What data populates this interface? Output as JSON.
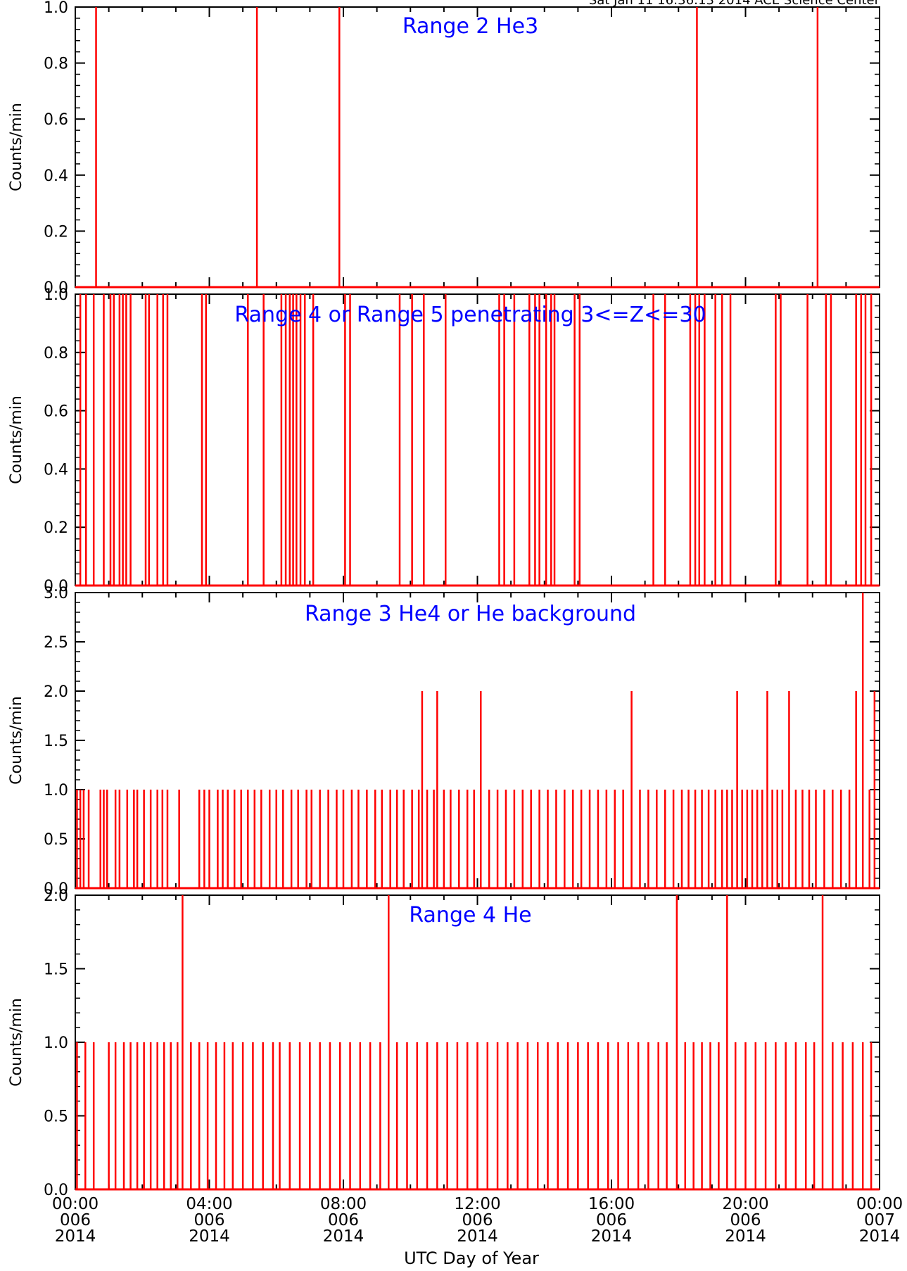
{
  "header": {
    "timestamp": "Sat Jan 11 16:36:13 2014 ACE Science Center"
  },
  "x_axis": {
    "label": "UTC Day of Year",
    "range_hours": [
      0,
      24
    ],
    "ticks": [
      {
        "hour": 0,
        "time": "00:00",
        "doy": "006",
        "year": "2014"
      },
      {
        "hour": 4,
        "time": "04:00",
        "doy": "006",
        "year": "2014"
      },
      {
        "hour": 8,
        "time": "08:00",
        "doy": "006",
        "year": "2014"
      },
      {
        "hour": 12,
        "time": "12:00",
        "doy": "006",
        "year": "2014"
      },
      {
        "hour": 16,
        "time": "16:00",
        "doy": "006",
        "year": "2014"
      },
      {
        "hour": 20,
        "time": "20:00",
        "doy": "006",
        "year": "2014"
      },
      {
        "hour": 24,
        "time": "00:00",
        "doy": "007",
        "year": "2014"
      }
    ]
  },
  "colors": {
    "data": "#ff0000",
    "title": "#0000ff",
    "axes": "#000000"
  },
  "chart_data": [
    {
      "type": "line",
      "title": "Range 2 He3",
      "ylabel": "Counts/min",
      "ylim": [
        0,
        1.0
      ],
      "yticks": [
        "0.0",
        "0.2",
        "0.4",
        "0.6",
        "0.8",
        "1.0"
      ],
      "ytick_values": [
        0,
        0.2,
        0.4,
        0.6,
        0.8,
        1.0
      ],
      "spikes": [
        {
          "t": 0.62,
          "v": 1
        },
        {
          "t": 5.42,
          "v": 1
        },
        {
          "t": 7.88,
          "v": 1
        },
        {
          "t": 18.55,
          "v": 1
        },
        {
          "t": 22.15,
          "v": 1
        }
      ]
    },
    {
      "type": "line",
      "title": "Range 4 or Range 5 penetrating 3<=Z<=30",
      "ylabel": "Counts/min",
      "ylim": [
        0,
        1.0
      ],
      "yticks": [
        "0.0",
        "0.2",
        "0.4",
        "0.6",
        "0.8",
        "1.0"
      ],
      "ytick_values": [
        0,
        0.2,
        0.4,
        0.6,
        0.8,
        1.0
      ],
      "spikes": [
        {
          "t": 0.15,
          "v": 1
        },
        {
          "t": 0.32,
          "v": 1
        },
        {
          "t": 0.55,
          "v": 1
        },
        {
          "t": 0.85,
          "v": 1
        },
        {
          "t": 1.05,
          "v": 1
        },
        {
          "t": 1.15,
          "v": 1
        },
        {
          "t": 1.32,
          "v": 1
        },
        {
          "t": 1.42,
          "v": 1
        },
        {
          "t": 1.52,
          "v": 1
        },
        {
          "t": 1.65,
          "v": 1
        },
        {
          "t": 2.1,
          "v": 1
        },
        {
          "t": 2.2,
          "v": 1
        },
        {
          "t": 2.45,
          "v": 1
        },
        {
          "t": 2.62,
          "v": 1
        },
        {
          "t": 2.75,
          "v": 1
        },
        {
          "t": 3.78,
          "v": 1
        },
        {
          "t": 3.9,
          "v": 1
        },
        {
          "t": 5.15,
          "v": 1
        },
        {
          "t": 5.62,
          "v": 1
        },
        {
          "t": 6.15,
          "v": 1
        },
        {
          "t": 6.28,
          "v": 1
        },
        {
          "t": 6.4,
          "v": 1
        },
        {
          "t": 6.5,
          "v": 1
        },
        {
          "t": 6.6,
          "v": 1
        },
        {
          "t": 6.72,
          "v": 1
        },
        {
          "t": 6.85,
          "v": 1
        },
        {
          "t": 7.1,
          "v": 1
        },
        {
          "t": 8.05,
          "v": 1
        },
        {
          "t": 8.2,
          "v": 1
        },
        {
          "t": 9.68,
          "v": 1
        },
        {
          "t": 10.05,
          "v": 1
        },
        {
          "t": 10.4,
          "v": 1
        },
        {
          "t": 11.05,
          "v": 1
        },
        {
          "t": 12.65,
          "v": 1
        },
        {
          "t": 12.8,
          "v": 1
        },
        {
          "t": 13.1,
          "v": 1
        },
        {
          "t": 13.55,
          "v": 1
        },
        {
          "t": 13.72,
          "v": 1
        },
        {
          "t": 13.85,
          "v": 1
        },
        {
          "t": 14.05,
          "v": 1
        },
        {
          "t": 14.2,
          "v": 1
        },
        {
          "t": 14.3,
          "v": 1
        },
        {
          "t": 14.9,
          "v": 1
        },
        {
          "t": 15.05,
          "v": 1
        },
        {
          "t": 17.25,
          "v": 1
        },
        {
          "t": 17.6,
          "v": 1
        },
        {
          "t": 18.35,
          "v": 1
        },
        {
          "t": 18.5,
          "v": 1
        },
        {
          "t": 18.62,
          "v": 1
        },
        {
          "t": 18.78,
          "v": 1
        },
        {
          "t": 19.1,
          "v": 1
        },
        {
          "t": 19.3,
          "v": 1
        },
        {
          "t": 19.55,
          "v": 1
        },
        {
          "t": 20.9,
          "v": 1
        },
        {
          "t": 21.05,
          "v": 1
        },
        {
          "t": 21.85,
          "v": 1
        },
        {
          "t": 22.4,
          "v": 1
        },
        {
          "t": 22.55,
          "v": 1
        },
        {
          "t": 23.3,
          "v": 1
        },
        {
          "t": 23.45,
          "v": 1
        },
        {
          "t": 23.58,
          "v": 1
        },
        {
          "t": 23.75,
          "v": 1
        }
      ]
    },
    {
      "type": "line",
      "title": "Range 3 He4 or He background",
      "ylabel": "Counts/min",
      "ylim": [
        0,
        3.0
      ],
      "yticks": [
        "0.0",
        "0.5",
        "1.0",
        "1.5",
        "2.0",
        "2.5",
        "3.0"
      ],
      "ytick_values": [
        0,
        0.5,
        1.0,
        1.5,
        2.0,
        2.5,
        3.0
      ],
      "spikes": [
        {
          "t": 0.05,
          "v": 1
        },
        {
          "t": 0.15,
          "v": 1
        },
        {
          "t": 0.25,
          "v": 1
        },
        {
          "t": 0.4,
          "v": 1
        },
        {
          "t": 0.75,
          "v": 1
        },
        {
          "t": 0.85,
          "v": 1
        },
        {
          "t": 0.95,
          "v": 1
        },
        {
          "t": 1.2,
          "v": 1
        },
        {
          "t": 1.32,
          "v": 1
        },
        {
          "t": 1.55,
          "v": 1
        },
        {
          "t": 1.75,
          "v": 1
        },
        {
          "t": 1.85,
          "v": 1
        },
        {
          "t": 2.05,
          "v": 1
        },
        {
          "t": 2.25,
          "v": 1
        },
        {
          "t": 2.45,
          "v": 1
        },
        {
          "t": 2.6,
          "v": 1
        },
        {
          "t": 2.75,
          "v": 1
        },
        {
          "t": 3.1,
          "v": 1
        },
        {
          "t": 3.7,
          "v": 1
        },
        {
          "t": 3.85,
          "v": 1
        },
        {
          "t": 4.0,
          "v": 1
        },
        {
          "t": 4.25,
          "v": 1
        },
        {
          "t": 4.4,
          "v": 1
        },
        {
          "t": 4.55,
          "v": 1
        },
        {
          "t": 4.75,
          "v": 1
        },
        {
          "t": 4.95,
          "v": 1
        },
        {
          "t": 5.15,
          "v": 1
        },
        {
          "t": 5.35,
          "v": 1
        },
        {
          "t": 5.55,
          "v": 1
        },
        {
          "t": 5.8,
          "v": 1
        },
        {
          "t": 6.0,
          "v": 1
        },
        {
          "t": 6.2,
          "v": 1
        },
        {
          "t": 6.45,
          "v": 1
        },
        {
          "t": 6.65,
          "v": 1
        },
        {
          "t": 6.9,
          "v": 1
        },
        {
          "t": 7.05,
          "v": 1
        },
        {
          "t": 7.3,
          "v": 1
        },
        {
          "t": 7.55,
          "v": 1
        },
        {
          "t": 7.8,
          "v": 1
        },
        {
          "t": 8.0,
          "v": 1
        },
        {
          "t": 8.25,
          "v": 1
        },
        {
          "t": 8.45,
          "v": 1
        },
        {
          "t": 8.7,
          "v": 1
        },
        {
          "t": 8.95,
          "v": 1
        },
        {
          "t": 9.15,
          "v": 1
        },
        {
          "t": 9.4,
          "v": 1
        },
        {
          "t": 9.6,
          "v": 1
        },
        {
          "t": 9.8,
          "v": 1
        },
        {
          "t": 10.05,
          "v": 1
        },
        {
          "t": 10.25,
          "v": 1
        },
        {
          "t": 10.35,
          "v": 2
        },
        {
          "t": 10.5,
          "v": 1
        },
        {
          "t": 10.7,
          "v": 1
        },
        {
          "t": 10.8,
          "v": 2
        },
        {
          "t": 11.0,
          "v": 1
        },
        {
          "t": 11.2,
          "v": 1
        },
        {
          "t": 11.45,
          "v": 1
        },
        {
          "t": 11.7,
          "v": 1
        },
        {
          "t": 11.9,
          "v": 1
        },
        {
          "t": 12.1,
          "v": 2
        },
        {
          "t": 12.35,
          "v": 1
        },
        {
          "t": 12.6,
          "v": 1
        },
        {
          "t": 12.85,
          "v": 1
        },
        {
          "t": 13.1,
          "v": 1
        },
        {
          "t": 13.35,
          "v": 1
        },
        {
          "t": 13.6,
          "v": 1
        },
        {
          "t": 13.85,
          "v": 1
        },
        {
          "t": 14.1,
          "v": 1
        },
        {
          "t": 14.35,
          "v": 1
        },
        {
          "t": 14.6,
          "v": 1
        },
        {
          "t": 14.85,
          "v": 1
        },
        {
          "t": 15.1,
          "v": 1
        },
        {
          "t": 15.35,
          "v": 1
        },
        {
          "t": 15.6,
          "v": 1
        },
        {
          "t": 15.85,
          "v": 1
        },
        {
          "t": 16.1,
          "v": 1
        },
        {
          "t": 16.35,
          "v": 1
        },
        {
          "t": 16.6,
          "v": 2
        },
        {
          "t": 16.85,
          "v": 1
        },
        {
          "t": 17.1,
          "v": 1
        },
        {
          "t": 17.35,
          "v": 1
        },
        {
          "t": 17.6,
          "v": 1
        },
        {
          "t": 17.85,
          "v": 1
        },
        {
          "t": 18.1,
          "v": 1
        },
        {
          "t": 18.3,
          "v": 1
        },
        {
          "t": 18.5,
          "v": 1
        },
        {
          "t": 18.7,
          "v": 1
        },
        {
          "t": 18.9,
          "v": 1
        },
        {
          "t": 19.1,
          "v": 1
        },
        {
          "t": 19.3,
          "v": 1
        },
        {
          "t": 19.45,
          "v": 1
        },
        {
          "t": 19.6,
          "v": 1
        },
        {
          "t": 19.75,
          "v": 2
        },
        {
          "t": 19.9,
          "v": 1
        },
        {
          "t": 20.05,
          "v": 1
        },
        {
          "t": 20.2,
          "v": 1
        },
        {
          "t": 20.35,
          "v": 1
        },
        {
          "t": 20.5,
          "v": 1
        },
        {
          "t": 20.65,
          "v": 2
        },
        {
          "t": 20.8,
          "v": 1
        },
        {
          "t": 20.95,
          "v": 1
        },
        {
          "t": 21.1,
          "v": 1
        },
        {
          "t": 21.3,
          "v": 2
        },
        {
          "t": 21.5,
          "v": 1
        },
        {
          "t": 21.7,
          "v": 1
        },
        {
          "t": 21.9,
          "v": 1
        },
        {
          "t": 22.1,
          "v": 1
        },
        {
          "t": 22.35,
          "v": 1
        },
        {
          "t": 22.6,
          "v": 1
        },
        {
          "t": 22.85,
          "v": 1
        },
        {
          "t": 23.1,
          "v": 1
        },
        {
          "t": 23.3,
          "v": 2
        },
        {
          "t": 23.5,
          "v": 3
        },
        {
          "t": 23.7,
          "v": 1
        },
        {
          "t": 23.85,
          "v": 2
        }
      ]
    },
    {
      "type": "line",
      "title": "Range 4 He",
      "ylabel": "Counts/min",
      "ylim": [
        0,
        2.0
      ],
      "yticks": [
        "0.0",
        "0.5",
        "1.0",
        "1.5",
        "2.0"
      ],
      "ytick_values": [
        0,
        0.5,
        1.0,
        1.5,
        2.0
      ],
      "spikes": [
        {
          "t": 0.05,
          "v": 1
        },
        {
          "t": 0.3,
          "v": 1
        },
        {
          "t": 0.55,
          "v": 1
        },
        {
          "t": 1.0,
          "v": 1
        },
        {
          "t": 1.2,
          "v": 1
        },
        {
          "t": 1.45,
          "v": 1
        },
        {
          "t": 1.65,
          "v": 1
        },
        {
          "t": 1.85,
          "v": 1
        },
        {
          "t": 2.05,
          "v": 1
        },
        {
          "t": 2.25,
          "v": 1
        },
        {
          "t": 2.45,
          "v": 1
        },
        {
          "t": 2.65,
          "v": 1
        },
        {
          "t": 2.85,
          "v": 1
        },
        {
          "t": 3.05,
          "v": 1
        },
        {
          "t": 3.2,
          "v": 2
        },
        {
          "t": 3.45,
          "v": 1
        },
        {
          "t": 3.7,
          "v": 1
        },
        {
          "t": 3.95,
          "v": 1
        },
        {
          "t": 4.2,
          "v": 1
        },
        {
          "t": 4.45,
          "v": 1
        },
        {
          "t": 4.7,
          "v": 1
        },
        {
          "t": 5.0,
          "v": 1
        },
        {
          "t": 5.3,
          "v": 1
        },
        {
          "t": 5.6,
          "v": 1
        },
        {
          "t": 5.9,
          "v": 1
        },
        {
          "t": 6.1,
          "v": 1
        },
        {
          "t": 6.4,
          "v": 1
        },
        {
          "t": 6.7,
          "v": 1
        },
        {
          "t": 7.0,
          "v": 1
        },
        {
          "t": 7.3,
          "v": 1
        },
        {
          "t": 7.6,
          "v": 1
        },
        {
          "t": 7.9,
          "v": 1
        },
        {
          "t": 8.2,
          "v": 1
        },
        {
          "t": 8.5,
          "v": 1
        },
        {
          "t": 8.8,
          "v": 1
        },
        {
          "t": 9.1,
          "v": 1
        },
        {
          "t": 9.35,
          "v": 2
        },
        {
          "t": 9.6,
          "v": 1
        },
        {
          "t": 9.9,
          "v": 1
        },
        {
          "t": 10.2,
          "v": 1
        },
        {
          "t": 10.5,
          "v": 1
        },
        {
          "t": 10.8,
          "v": 1
        },
        {
          "t": 11.1,
          "v": 1
        },
        {
          "t": 11.4,
          "v": 1
        },
        {
          "t": 11.7,
          "v": 1
        },
        {
          "t": 12.0,
          "v": 1
        },
        {
          "t": 12.3,
          "v": 1
        },
        {
          "t": 12.6,
          "v": 1
        },
        {
          "t": 12.9,
          "v": 1
        },
        {
          "t": 13.2,
          "v": 1
        },
        {
          "t": 13.5,
          "v": 1
        },
        {
          "t": 13.8,
          "v": 1
        },
        {
          "t": 14.1,
          "v": 1
        },
        {
          "t": 14.4,
          "v": 1
        },
        {
          "t": 14.7,
          "v": 1
        },
        {
          "t": 15.0,
          "v": 1
        },
        {
          "t": 15.3,
          "v": 1
        },
        {
          "t": 15.6,
          "v": 1
        },
        {
          "t": 15.9,
          "v": 1
        },
        {
          "t": 16.2,
          "v": 1
        },
        {
          "t": 16.5,
          "v": 1
        },
        {
          "t": 16.8,
          "v": 1
        },
        {
          "t": 17.1,
          "v": 1
        },
        {
          "t": 17.4,
          "v": 1
        },
        {
          "t": 17.65,
          "v": 1
        },
        {
          "t": 17.95,
          "v": 2
        },
        {
          "t": 18.2,
          "v": 1
        },
        {
          "t": 18.45,
          "v": 1
        },
        {
          "t": 18.7,
          "v": 1
        },
        {
          "t": 18.95,
          "v": 1
        },
        {
          "t": 19.2,
          "v": 1
        },
        {
          "t": 19.45,
          "v": 2
        },
        {
          "t": 19.7,
          "v": 1
        },
        {
          "t": 20.0,
          "v": 1
        },
        {
          "t": 20.3,
          "v": 1
        },
        {
          "t": 20.6,
          "v": 1
        },
        {
          "t": 20.9,
          "v": 1
        },
        {
          "t": 21.2,
          "v": 1
        },
        {
          "t": 21.5,
          "v": 1
        },
        {
          "t": 21.8,
          "v": 1
        },
        {
          "t": 22.05,
          "v": 1
        },
        {
          "t": 22.3,
          "v": 2
        },
        {
          "t": 22.6,
          "v": 1
        },
        {
          "t": 22.9,
          "v": 1
        },
        {
          "t": 23.2,
          "v": 1
        },
        {
          "t": 23.5,
          "v": 1
        },
        {
          "t": 23.75,
          "v": 1
        }
      ]
    }
  ]
}
